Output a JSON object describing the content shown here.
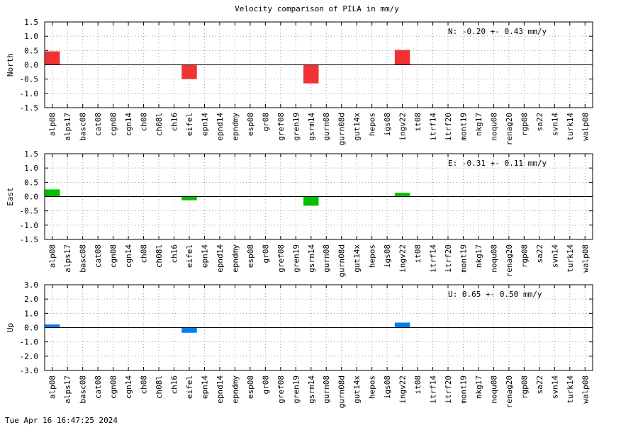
{
  "title": "Velocity comparison of PILA in mm/y",
  "timestamp": "Tue Apr 16 16:47:25 2024",
  "chart_data": [
    {
      "type": "bar",
      "ylabel": "North",
      "ylim": [
        -1.5,
        1.5
      ],
      "yticks": [
        "1.5",
        "1.0",
        "0.5",
        "0.0",
        "-0.5",
        "-1.0",
        "-1.5"
      ],
      "ytick_values": [
        1.5,
        1.0,
        0.5,
        0.0,
        -0.5,
        -1.0,
        -1.5
      ],
      "color": "#f03232",
      "grid": true,
      "annotation": "N:  -0.20 +-  0.43 mm/y",
      "categories": [
        "alp08",
        "alps17",
        "basc08",
        "cat08",
        "cgn08",
        "cgn14",
        "ch08",
        "ch08l",
        "ch16",
        "eifel",
        "epn14",
        "epnd14",
        "epndmy",
        "esp08",
        "gr08",
        "gref08",
        "gren19",
        "gsrm14",
        "gurn08",
        "gurn08d",
        "gut14x",
        "hepos",
        "igs08",
        "ingv22",
        "it08",
        "itrf14",
        "itrf20",
        "mont19",
        "nkg17",
        "noqu08",
        "renag20",
        "rgp08",
        "sa22",
        "svn14",
        "turk14",
        "walp08"
      ],
      "values": [
        0.47,
        0,
        0,
        0,
        0,
        0,
        0,
        0,
        0,
        -0.5,
        0,
        0,
        0,
        0,
        0,
        0,
        0,
        -0.65,
        0,
        0,
        0,
        0,
        0,
        0.52,
        0,
        0,
        0,
        0,
        0,
        0,
        0,
        0,
        0,
        0,
        0,
        0
      ]
    },
    {
      "type": "bar",
      "ylabel": "East",
      "ylim": [
        -1.5,
        1.5
      ],
      "yticks": [
        "1.5",
        "1.0",
        "0.5",
        "0.0",
        "-0.5",
        "-1.0",
        "-1.5"
      ],
      "ytick_values": [
        1.5,
        1.0,
        0.5,
        0.0,
        -0.5,
        -1.0,
        -1.5
      ],
      "color": "#00c000",
      "grid": true,
      "annotation": "E:  -0.31 +-  0.11 mm/y",
      "categories": [
        "alp08",
        "alps17",
        "basc08",
        "cat08",
        "cgn08",
        "cgn14",
        "ch08",
        "ch08l",
        "ch16",
        "eifel",
        "epn14",
        "epnd14",
        "epndmy",
        "esp08",
        "gr08",
        "gref08",
        "gren19",
        "gsrm14",
        "gurn08",
        "gurn08d",
        "gut14x",
        "hepos",
        "igs08",
        "ingv22",
        "it08",
        "itrf14",
        "itrf20",
        "mont19",
        "nkg17",
        "noqu08",
        "renag20",
        "rgp08",
        "sa22",
        "svn14",
        "turk14",
        "walp08"
      ],
      "values": [
        0.25,
        0,
        0,
        0,
        0,
        0,
        0,
        0,
        0,
        -0.13,
        0,
        0,
        0,
        0,
        0,
        0,
        0,
        -0.32,
        0,
        0,
        0,
        0,
        0,
        0.13,
        0,
        0,
        0,
        0,
        0,
        0,
        0,
        0,
        0,
        0,
        0,
        0
      ]
    },
    {
      "type": "bar",
      "ylabel": "Up",
      "ylim": [
        -3.0,
        3.0
      ],
      "yticks": [
        "3.0",
        "2.0",
        "1.0",
        "0.0",
        "-1.0",
        "-2.0",
        "-3.0"
      ],
      "ytick_values": [
        3.0,
        2.0,
        1.0,
        0.0,
        -1.0,
        -2.0,
        -3.0
      ],
      "color": "#0080f0",
      "grid": true,
      "annotation": "U:   0.65 +-  0.50 mm/y",
      "categories": [
        "alp08",
        "alps17",
        "basc08",
        "cat08",
        "cgn08",
        "cgn14",
        "ch08",
        "ch08l",
        "ch16",
        "eifel",
        "epn14",
        "epnd14",
        "epndmy",
        "esp08",
        "gr08",
        "gref08",
        "gren19",
        "gsrm14",
        "gurn08",
        "gurn08d",
        "gut14x",
        "hepos",
        "igs08",
        "ingv22",
        "it08",
        "itrf14",
        "itrf20",
        "mont19",
        "nkg17",
        "noqu08",
        "renag20",
        "rgp08",
        "sa22",
        "svn14",
        "turk14",
        "walp08"
      ],
      "values": [
        0.22,
        0,
        0,
        0,
        0,
        0,
        0,
        0,
        0,
        -0.36,
        0,
        0,
        0,
        0,
        0,
        0,
        0,
        0,
        0,
        0,
        0,
        0,
        0,
        0.35,
        0,
        0,
        0,
        0,
        0,
        0,
        0,
        0,
        0,
        0,
        0,
        0
      ]
    }
  ]
}
